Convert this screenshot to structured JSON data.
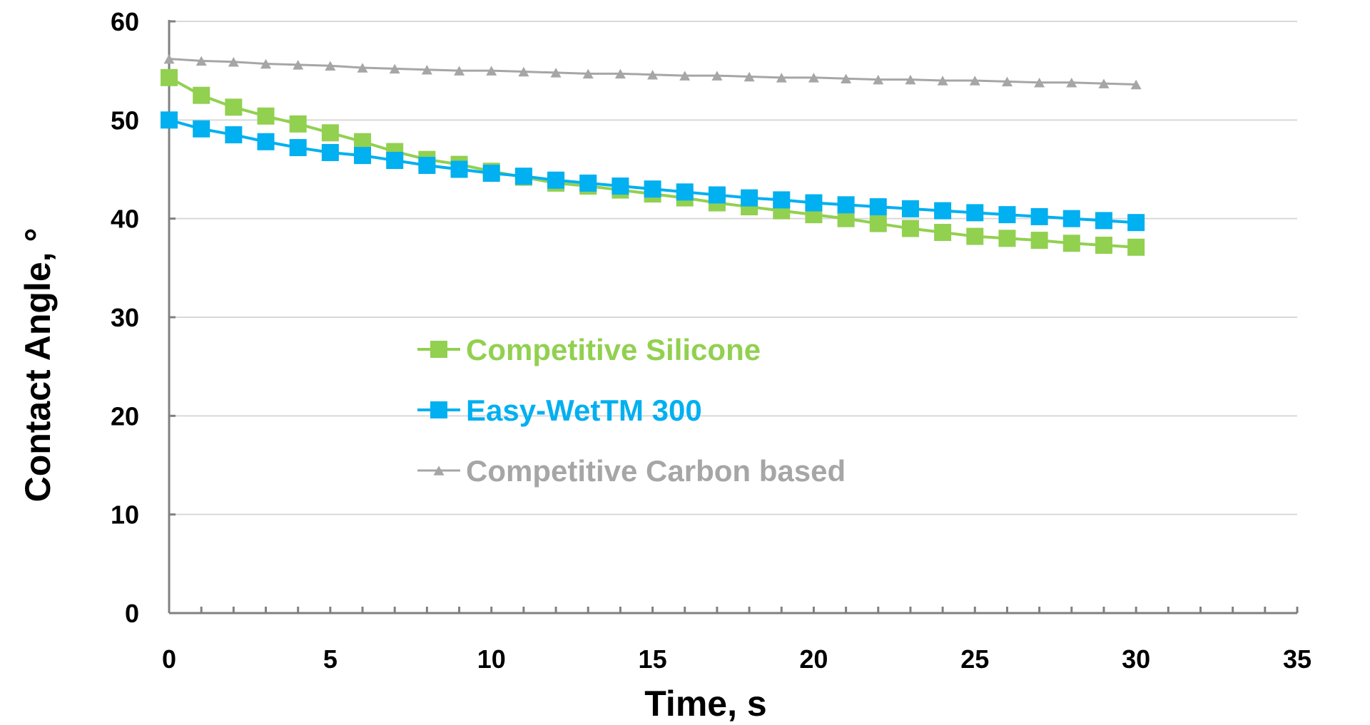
{
  "chart_data": {
    "type": "line",
    "xlabel": "Time, s",
    "ylabel": "Contact Angle, °",
    "xlim": [
      0,
      35
    ],
    "ylim": [
      0,
      60
    ],
    "x_ticks": [
      0,
      5,
      10,
      15,
      20,
      25,
      30,
      35
    ],
    "y_ticks": [
      0,
      10,
      20,
      30,
      40,
      50,
      60
    ],
    "grid": {
      "horizontal": true,
      "vertical": false
    },
    "legend_position": "center-left",
    "x": [
      0,
      1,
      2,
      3,
      4,
      5,
      6,
      7,
      8,
      9,
      10,
      11,
      12,
      13,
      14,
      15,
      16,
      17,
      18,
      19,
      20,
      21,
      22,
      23,
      24,
      25,
      26,
      27,
      28,
      29,
      30
    ],
    "series": [
      {
        "name": "Competitive Silicone",
        "color": "#92D050",
        "marker": "square",
        "values": [
          54.3,
          52.5,
          51.3,
          50.4,
          49.6,
          48.7,
          47.8,
          46.8,
          46.0,
          45.5,
          44.8,
          44.2,
          43.6,
          43.3,
          42.9,
          42.5,
          42.1,
          41.6,
          41.2,
          40.8,
          40.4,
          40.0,
          39.5,
          39.0,
          38.6,
          38.2,
          38.0,
          37.8,
          37.5,
          37.3,
          37.1
        ]
      },
      {
        "name": "Easy-WetTM 300",
        "color": "#00B0F0",
        "marker": "square",
        "values": [
          50.0,
          49.1,
          48.5,
          47.8,
          47.2,
          46.7,
          46.4,
          45.9,
          45.4,
          45.0,
          44.6,
          44.3,
          43.9,
          43.6,
          43.3,
          43.0,
          42.7,
          42.4,
          42.1,
          41.9,
          41.6,
          41.4,
          41.2,
          41.0,
          40.8,
          40.6,
          40.4,
          40.2,
          40.0,
          39.8,
          39.6
        ]
      },
      {
        "name": "Competitive Carbon based",
        "color": "#A6A6A6",
        "marker": "triangle",
        "values": [
          56.2,
          56.0,
          55.9,
          55.7,
          55.6,
          55.5,
          55.3,
          55.2,
          55.1,
          55.0,
          55.0,
          54.9,
          54.8,
          54.7,
          54.7,
          54.6,
          54.5,
          54.5,
          54.4,
          54.3,
          54.3,
          54.2,
          54.1,
          54.1,
          54.0,
          54.0,
          53.9,
          53.8,
          53.8,
          53.7,
          53.6
        ]
      }
    ]
  }
}
